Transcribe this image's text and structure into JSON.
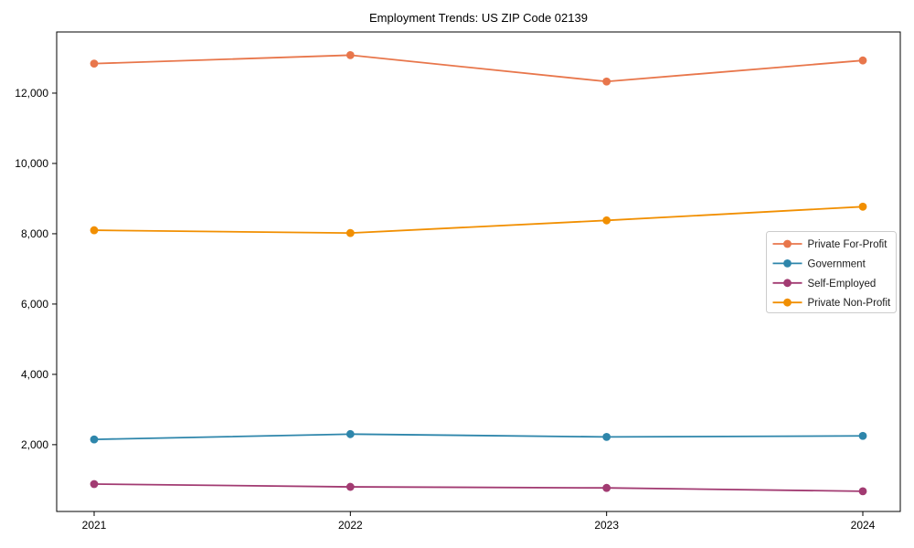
{
  "chart_data": {
    "type": "line",
    "title": "Employment Trends: US ZIP Code 02139",
    "categories": [
      "2021",
      "2022",
      "2023",
      "2024"
    ],
    "series": [
      {
        "name": "Private For-Profit",
        "color": "#E8764B",
        "values": [
          12840,
          13080,
          12330,
          12930
        ]
      },
      {
        "name": "Government",
        "color": "#2E86AB",
        "values": [
          2150,
          2300,
          2220,
          2250
        ]
      },
      {
        "name": "Self-Employed",
        "color": "#A23B72",
        "values": [
          880,
          800,
          770,
          675
        ]
      },
      {
        "name": "Private Non-Profit",
        "color": "#F18F01",
        "values": [
          8100,
          8020,
          8380,
          8770
        ]
      }
    ],
    "xlabel": "",
    "ylabel": "",
    "y_ticks": [
      2000,
      4000,
      6000,
      8000,
      10000,
      12000
    ],
    "y_tick_labels": [
      "2,000",
      "4,000",
      "6,000",
      "8,000",
      "10,000",
      "12,000"
    ],
    "ylim": [
      100,
      13740
    ],
    "grid": false,
    "legend_position": "center-right",
    "axis_color": "#000000",
    "legend_border_color": "#cccccc",
    "background_color": "#ffffff"
  }
}
